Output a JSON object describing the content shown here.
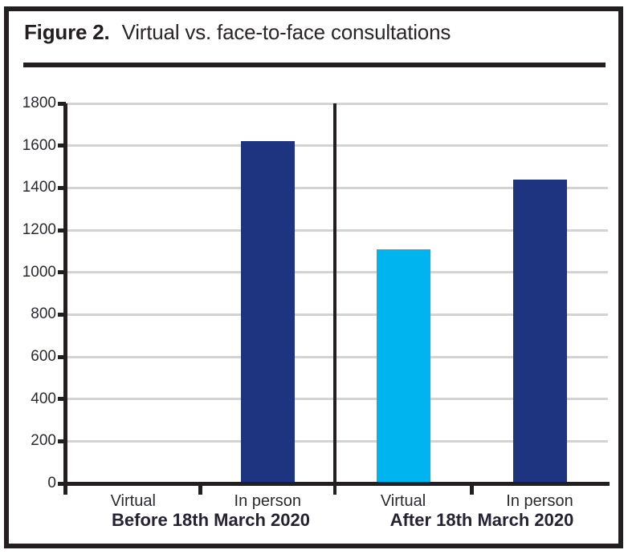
{
  "figure": {
    "label": "Figure 2.",
    "title": "Virtual vs. face-to-face consultations"
  },
  "chart_data": {
    "type": "bar",
    "title": "Figure 2. Virtual vs. face-to-face consultations",
    "xlabel": "",
    "ylabel": "",
    "ylim": [
      0,
      1800
    ],
    "ytick_step": 200,
    "yticks": [
      0,
      200,
      400,
      600,
      800,
      1000,
      1200,
      1400,
      1600,
      1800
    ],
    "grid": true,
    "legend": "none",
    "groups": [
      {
        "label": "Before 18th March 2020",
        "bars": [
          {
            "category": "Virtual",
            "value": 0,
            "color": "#1f3480"
          },
          {
            "category": "In person",
            "value": 1620,
            "color": "#1f3480"
          }
        ]
      },
      {
        "label": "After 18th March 2020",
        "bars": [
          {
            "category": "Virtual",
            "value": 1110,
            "color": "#00b5ef"
          },
          {
            "category": "In person",
            "value": 1440,
            "color": "#1f3480"
          }
        ]
      }
    ]
  },
  "colors": {
    "navy": "#1f3480",
    "cyan": "#00b5ef",
    "line_black": "#231f20",
    "gridline_gray": "#d3d3d3"
  }
}
